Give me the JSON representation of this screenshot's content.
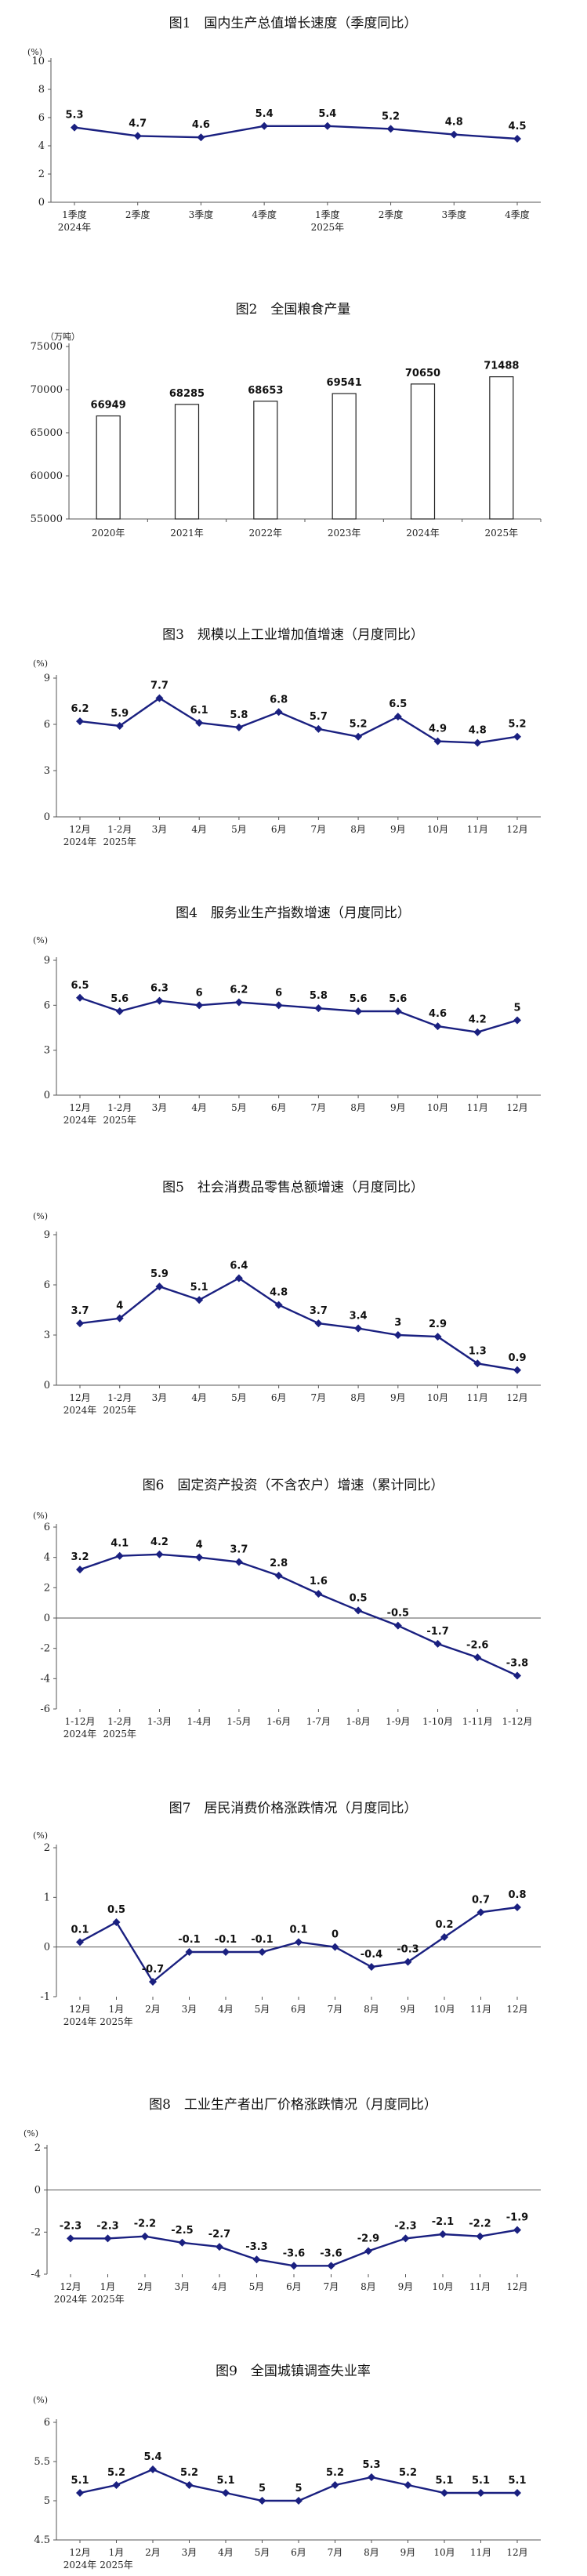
{
  "chart_data": [
    {
      "type": "line",
      "title": "图1　国内生产总值增长速度（季度同比）",
      "unit": "(%)",
      "categories": [
        "1季度",
        "2季度",
        "3季度",
        "4季度",
        "1季度",
        "2季度",
        "3季度",
        "4季度"
      ],
      "category_sublabels": [
        "2024年",
        "",
        "",
        "",
        "2025年",
        "",
        "",
        ""
      ],
      "series": [
        {
          "values": [
            5.3,
            4.7,
            4.6,
            5.4,
            5.4,
            5.2,
            4.8,
            4.5
          ]
        }
      ],
      "ylim": [
        0,
        10
      ],
      "yticks": [
        0,
        2,
        4,
        6,
        8,
        10
      ]
    },
    {
      "type": "bar",
      "title": "图2　全国粮食产量",
      "unit": "（万吨）",
      "categories": [
        "2020年",
        "2021年",
        "2022年",
        "2023年",
        "2024年",
        "2025年"
      ],
      "values": [
        66949,
        68285,
        68653,
        69541,
        70650,
        71488
      ],
      "ylim": [
        55000,
        75000
      ],
      "yticks": [
        55000,
        60000,
        65000,
        70000,
        75000
      ]
    },
    {
      "type": "line",
      "title": "图3　规模以上工业增加值增速（月度同比）",
      "unit": "(%)",
      "categories": [
        "12月",
        "1-2月",
        "3月",
        "4月",
        "5月",
        "6月",
        "7月",
        "8月",
        "9月",
        "10月",
        "11月",
        "12月"
      ],
      "category_sublabels": [
        "2024年",
        "2025年",
        "",
        "",
        "",
        "",
        "",
        "",
        "",
        "",
        "",
        ""
      ],
      "series": [
        {
          "values": [
            6.2,
            5.9,
            7.7,
            6.1,
            5.8,
            6.8,
            5.7,
            5.2,
            6.5,
            4.9,
            4.8,
            5.2
          ]
        }
      ],
      "ylim": [
        0,
        9
      ],
      "yticks": [
        0,
        3,
        6,
        9
      ]
    },
    {
      "type": "line",
      "title": "图4　服务业生产指数增速（月度同比）",
      "unit": "(%)",
      "categories": [
        "12月",
        "1-2月",
        "3月",
        "4月",
        "5月",
        "6月",
        "7月",
        "8月",
        "9月",
        "10月",
        "11月",
        "12月"
      ],
      "category_sublabels": [
        "2024年",
        "2025年",
        "",
        "",
        "",
        "",
        "",
        "",
        "",
        "",
        "",
        ""
      ],
      "series": [
        {
          "values": [
            6.5,
            5.6,
            6.3,
            6.0,
            6.2,
            6.0,
            5.8,
            5.6,
            5.6,
            4.6,
            4.2,
            5.0
          ]
        }
      ],
      "ylim": [
        0,
        9
      ],
      "yticks": [
        0,
        3,
        6,
        9
      ]
    },
    {
      "type": "line",
      "title": "图5　社会消费品零售总额增速（月度同比）",
      "unit": "(%)",
      "categories": [
        "12月",
        "1-2月",
        "3月",
        "4月",
        "5月",
        "6月",
        "7月",
        "8月",
        "9月",
        "10月",
        "11月",
        "12月"
      ],
      "category_sublabels": [
        "2024年",
        "2025年",
        "",
        "",
        "",
        "",
        "",
        "",
        "",
        "",
        "",
        ""
      ],
      "series": [
        {
          "values": [
            3.7,
            4.0,
            5.9,
            5.1,
            6.4,
            4.8,
            3.7,
            3.4,
            3.0,
            2.9,
            1.3,
            0.9
          ]
        }
      ],
      "ylim": [
        0,
        9
      ],
      "yticks": [
        0,
        3,
        6,
        9
      ]
    },
    {
      "type": "line",
      "title": "图6　固定资产投资（不含农户）增速（累计同比）",
      "unit": "(%)",
      "categories": [
        "1-12月",
        "1-2月",
        "1-3月",
        "1-4月",
        "1-5月",
        "1-6月",
        "1-7月",
        "1-8月",
        "1-9月",
        "1-10月",
        "1-11月",
        "1-12月"
      ],
      "category_sublabels": [
        "2024年",
        "2025年",
        "",
        "",
        "",
        "",
        "",
        "",
        "",
        "",
        "",
        ""
      ],
      "series": [
        {
          "values": [
            3.2,
            4.1,
            4.2,
            4.0,
            3.7,
            2.8,
            1.6,
            0.5,
            -0.5,
            -1.7,
            -2.6,
            -3.8
          ]
        }
      ],
      "ylim": [
        -6,
        6
      ],
      "yticks": [
        -6,
        -4,
        -2,
        0,
        2,
        4,
        6
      ]
    },
    {
      "type": "line",
      "title": "图7　居民消费价格涨跌情况（月度同比）",
      "unit": "(%)",
      "categories": [
        "12月",
        "1月",
        "2月",
        "3月",
        "4月",
        "5月",
        "6月",
        "7月",
        "8月",
        "9月",
        "10月",
        "11月",
        "12月"
      ],
      "category_sublabels": [
        "2024年",
        "2025年",
        "",
        "",
        "",
        "",
        "",
        "",
        "",
        "",
        "",
        "",
        ""
      ],
      "series": [
        {
          "values": [
            0.1,
            0.5,
            -0.7,
            -0.1,
            -0.1,
            -0.1,
            0.1,
            0.0,
            -0.4,
            -0.3,
            0.2,
            0.7,
            0.8
          ]
        }
      ],
      "ylim": [
        -1,
        2
      ],
      "yticks": [
        -1,
        0,
        1,
        2
      ]
    },
    {
      "type": "line",
      "title": "图8　工业生产者出厂价格涨跌情况（月度同比）",
      "unit": "(%)",
      "categories": [
        "12月",
        "1月",
        "2月",
        "3月",
        "4月",
        "5月",
        "6月",
        "7月",
        "8月",
        "9月",
        "10月",
        "11月",
        "12月"
      ],
      "category_sublabels": [
        "2024年",
        "2025年",
        "",
        "",
        "",
        "",
        "",
        "",
        "",
        "",
        "",
        "",
        ""
      ],
      "series": [
        {
          "values": [
            -2.3,
            -2.3,
            -2.2,
            -2.5,
            -2.7,
            -3.3,
            -3.6,
            -3.6,
            -2.9,
            -2.3,
            -2.1,
            -2.2,
            -1.9
          ]
        }
      ],
      "ylim": [
        -4,
        2
      ],
      "yticks": [
        -4,
        -2,
        0,
        2
      ]
    },
    {
      "type": "line",
      "title": "图9　全国城镇调查失业率",
      "unit": "(%)",
      "categories": [
        "12月",
        "1月",
        "2月",
        "3月",
        "4月",
        "5月",
        "6月",
        "7月",
        "8月",
        "9月",
        "10月",
        "11月",
        "12月"
      ],
      "category_sublabels": [
        "2024年",
        "2025年",
        "",
        "",
        "",
        "",
        "",
        "",
        "",
        "",
        "",
        "",
        ""
      ],
      "series": [
        {
          "values": [
            5.1,
            5.2,
            5.4,
            5.2,
            5.1,
            5.0,
            5.0,
            5.2,
            5.3,
            5.2,
            5.1,
            5.1,
            5.1
          ]
        }
      ],
      "ylim": [
        4.5,
        6.0
      ],
      "yticks": [
        4.5,
        5.0,
        5.5,
        6.0
      ]
    }
  ]
}
